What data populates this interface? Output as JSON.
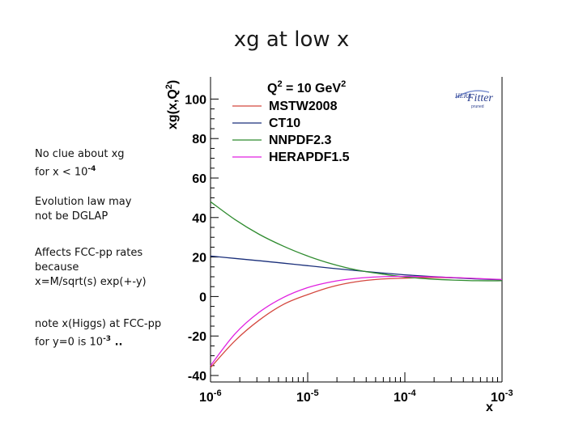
{
  "slide": {
    "title": "xg at low x"
  },
  "notes": {
    "n1_line1": "No clue about xg",
    "n1_line2_prefix": "for x < 10",
    "n1_line2_sup": "-4",
    "n2_line1": "Evolution law may",
    "n2_line2": "not be DGLAP",
    "n3_line1": "Affects FCC-pp rates",
    "n3_line2": "because",
    "n3_line3": "x=M/sqrt(s) exp(+-y)",
    "n4_line1": "note x(Higgs) at FCC-pp",
    "n4_line2_prefix": "for y=0 is 10",
    "n4_line2_sup": "-3",
    "n4_line2_suffix": " ..",
    "logo_main": "Fitter",
    "logo_prefix": "HERA",
    "logo_sub": "pruned"
  },
  "chart_data": {
    "type": "line",
    "title": "",
    "xlabel": "x",
    "ylabel_main": "xg(x,Q",
    "ylabel_sup": "2",
    "ylabel_end": ")",
    "xscale": "log",
    "xlim_exp": [
      -6,
      -3
    ],
    "ylim": [
      -40,
      110
    ],
    "x_ticks": [
      {
        "base": "10",
        "exp": "-6",
        "value": -6
      },
      {
        "base": "10",
        "exp": "-5",
        "value": -5
      },
      {
        "base": "10",
        "exp": "-4",
        "value": -4
      },
      {
        "base": "10",
        "exp": "-3",
        "value": -3
      }
    ],
    "y_ticks": [
      {
        "label": "-40",
        "value": -40
      },
      {
        "label": "-20",
        "value": -20
      },
      {
        "label": "0",
        "value": 0
      },
      {
        "label": "20",
        "value": 20
      },
      {
        "label": "40",
        "value": 40
      },
      {
        "label": "60",
        "value": 60
      },
      {
        "label": "80",
        "value": 80
      },
      {
        "label": "100",
        "value": 100
      }
    ],
    "legend": {
      "header_main": "Q",
      "header_sup": "2",
      "header_mid": " = 10 GeV",
      "header_sup2": "2",
      "placement": "top-center"
    },
    "series": [
      {
        "name": "MSTW2008",
        "color": "#d4483f",
        "points": [
          [
            -6,
            -36
          ],
          [
            -5.75,
            -22.5
          ],
          [
            -5.5,
            -12
          ],
          [
            -5.25,
            -4
          ],
          [
            -5,
            1
          ],
          [
            -4.75,
            5
          ],
          [
            -4.5,
            7.5
          ],
          [
            -4.25,
            8.8
          ],
          [
            -4,
            9.3
          ],
          [
            -3.75,
            9.6
          ],
          [
            -3.5,
            9.5
          ],
          [
            -3.25,
            9
          ],
          [
            -3,
            8.5
          ]
        ]
      },
      {
        "name": "CT10",
        "color": "#1a2f7a",
        "points": [
          [
            -6,
            20.5
          ],
          [
            -5.75,
            19.3
          ],
          [
            -5.5,
            18.1
          ],
          [
            -5.25,
            16.9
          ],
          [
            -5,
            15.6
          ],
          [
            -4.75,
            14.3
          ],
          [
            -4.5,
            13.1
          ],
          [
            -4.25,
            12
          ],
          [
            -4,
            11
          ],
          [
            -3.75,
            10.2
          ],
          [
            -3.5,
            9.5
          ],
          [
            -3.25,
            8.9
          ],
          [
            -3,
            8.5
          ]
        ]
      },
      {
        "name": "NNPDF2.3",
        "color": "#2e8b2e",
        "points": [
          [
            -6,
            48
          ],
          [
            -5.75,
            39
          ],
          [
            -5.5,
            31.5
          ],
          [
            -5.25,
            25.5
          ],
          [
            -5,
            20.5
          ],
          [
            -4.75,
            16.5
          ],
          [
            -4.5,
            13.5
          ],
          [
            -4.25,
            11.5
          ],
          [
            -4,
            9.9
          ],
          [
            -3.75,
            8.9
          ],
          [
            -3.5,
            8.3
          ],
          [
            -3.25,
            8
          ],
          [
            -3,
            8
          ]
        ]
      },
      {
        "name": "HERAPDF1.5",
        "color": "#e020e0",
        "points": [
          [
            -6,
            -35
          ],
          [
            -5.75,
            -19
          ],
          [
            -5.5,
            -8
          ],
          [
            -5.25,
            -0.5
          ],
          [
            -5,
            4.5
          ],
          [
            -4.75,
            7.5
          ],
          [
            -4.5,
            9.2
          ],
          [
            -4.25,
            10
          ],
          [
            -4,
            10.2
          ],
          [
            -3.75,
            10
          ],
          [
            -3.5,
            9.6
          ],
          [
            -3.25,
            9.1
          ],
          [
            -3,
            8.6
          ]
        ]
      }
    ]
  }
}
